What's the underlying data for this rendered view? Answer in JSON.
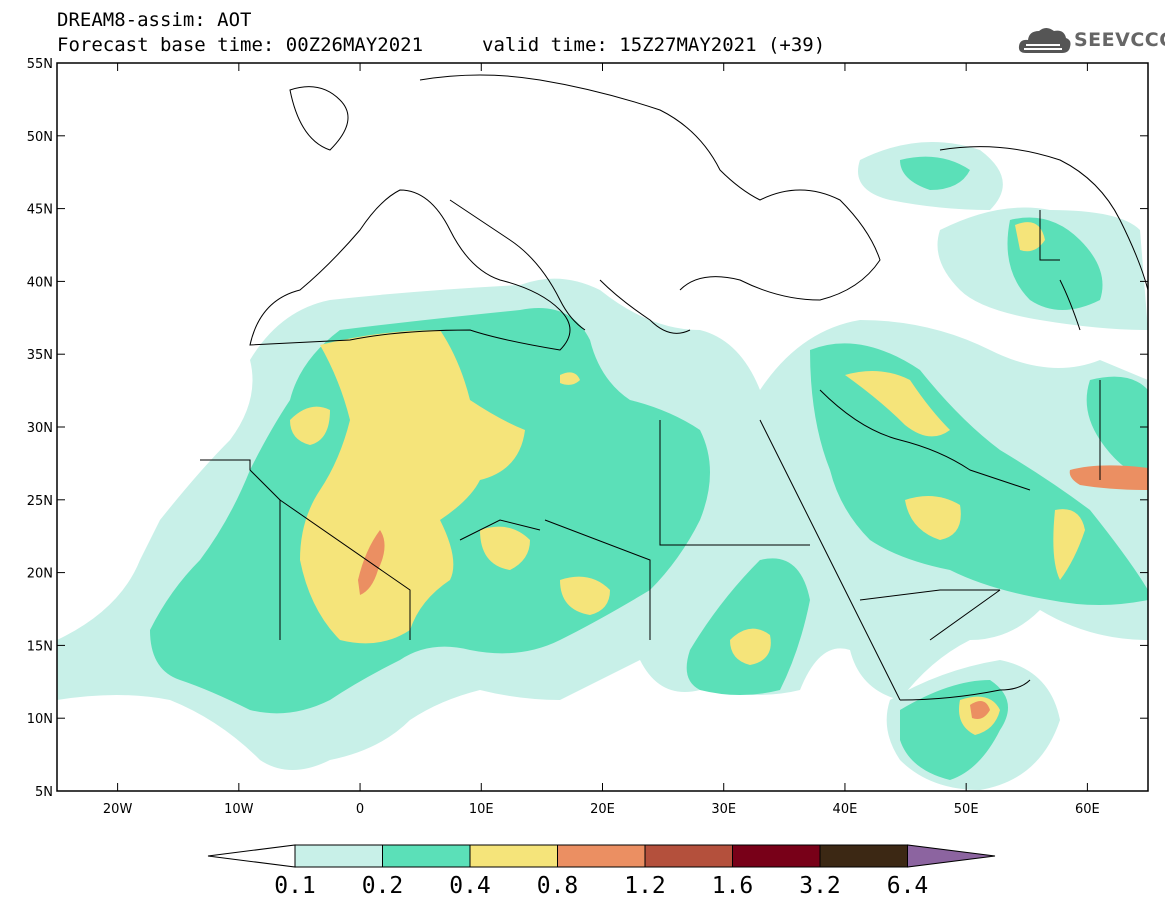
{
  "header": {
    "title": "DREAM8-assim: AOT",
    "base_time": "Forecast base time: 00Z26MAY2021",
    "valid_time": "valid time: 15Z27MAY2021 (+39)",
    "logo_text": "SEEVCCC",
    "logo_icon": "cloud-logo-icon"
  },
  "map": {
    "projection": "lat-lon",
    "lon_range": [
      -25,
      65
    ],
    "lat_range": [
      5,
      55
    ],
    "lat_ticks": [
      "55N",
      "50N",
      "45N",
      "40N",
      "35N",
      "30N",
      "25N",
      "20N",
      "15N",
      "10N",
      "5N"
    ],
    "lon_ticks": [
      "20W",
      "10W",
      "0",
      "10E",
      "20E",
      "30E",
      "40E",
      "50E",
      "60E"
    ],
    "variable": "Aerosol Optical Thickness"
  },
  "colorbar": {
    "labels": [
      "0.1",
      "0.2",
      "0.4",
      "0.8",
      "1.2",
      "1.6",
      "3.2",
      "6.4"
    ],
    "colors": [
      "#ffffff",
      "#c8f0e8",
      "#5be0b8",
      "#f5e47a",
      "#eb8f62",
      "#b4503c",
      "#780018",
      "#3c2814",
      "#8c64a0"
    ]
  }
}
